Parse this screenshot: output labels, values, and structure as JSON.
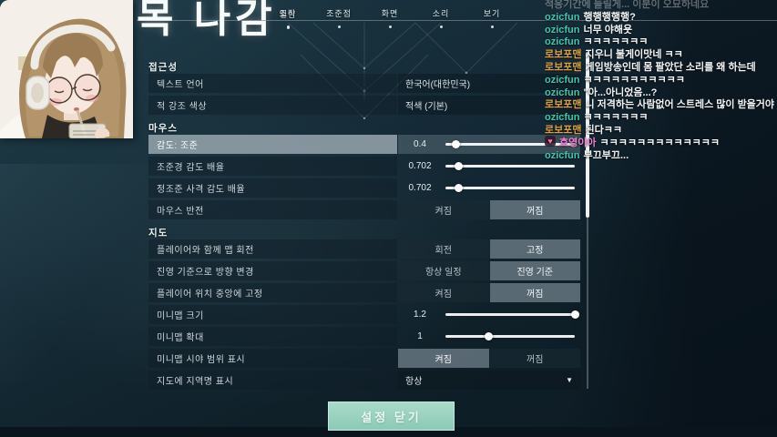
{
  "overlay": {
    "title": "목 나감"
  },
  "webcam": {
    "alt": "streamer-anime-avatar"
  },
  "tabs": {
    "hidden_selected": "일반",
    "items": [
      "조작",
      "조준점",
      "화면",
      "소리",
      "보기"
    ]
  },
  "settings": {
    "sections": [
      {
        "title": "접근성",
        "rows": [
          {
            "label": "텍스트 언어",
            "type": "select",
            "value": "한국어(대한민국)"
          },
          {
            "label": "적 강조 색상",
            "type": "select",
            "value": "적색 (기본)"
          }
        ]
      },
      {
        "title": "마우스",
        "rows": [
          {
            "label": "감도: 조준",
            "type": "slider",
            "value": "0.4",
            "percent": 8,
            "highlight": true
          },
          {
            "label": "조준경 감도 배율",
            "type": "slider",
            "value": "0.702",
            "percent": 10
          },
          {
            "label": "정조준 사격 감도 배율",
            "type": "slider",
            "value": "0.702",
            "percent": 10
          },
          {
            "label": "마우스 반전",
            "type": "toggle",
            "options": [
              "켜짐",
              "꺼짐"
            ],
            "selected": 1
          }
        ]
      },
      {
        "title": "지도",
        "rows": [
          {
            "label": "플레이어와 함께 맵 회전",
            "type": "toggle",
            "options": [
              "회전",
              "고정"
            ],
            "selected": 1
          },
          {
            "label": "진영 기준으로 방향 변경",
            "type": "toggle",
            "options": [
              "항상 일정",
              "진영 기준"
            ],
            "selected": 1
          },
          {
            "label": "플레이어 위치 중앙에 고정",
            "type": "toggle",
            "options": [
              "켜짐",
              "꺼짐"
            ],
            "selected": 1
          },
          {
            "label": "미니맵 크기",
            "type": "slider",
            "value": "1.2",
            "percent": 100
          },
          {
            "label": "미니맵 확대",
            "type": "slider",
            "value": "1",
            "percent": 33
          },
          {
            "label": "미니맵 시야 범위 표시",
            "type": "toggle",
            "options": [
              "켜짐",
              "꺼짐"
            ],
            "selected": 0
          },
          {
            "label": "지도에 지역명 표시",
            "type": "dropdown",
            "value": "항상"
          }
        ]
      }
    ],
    "close_button": "설정 닫기"
  },
  "chat": {
    "messages": [
      {
        "user": "",
        "text": "적응기간에 들릴게... 이분이 오묘하네요",
        "color": "gray",
        "faded": true
      },
      {
        "user": "ozicfun",
        "text": "행행행행행?",
        "color": "teal"
      },
      {
        "user": "ozicfun",
        "text": "너무 야해욧",
        "color": "teal"
      },
      {
        "user": "ozicfun",
        "text": "ㅋㅋㅋㅋㅋㅋㅋ",
        "color": "teal"
      },
      {
        "user": "로보포맨",
        "text": "지우니 불게이맛네 ㅋㅋ",
        "color": "gold"
      },
      {
        "user": "로보포맨",
        "text": "게임방송인데 몸 팔았단 소리를 왜 하는데",
        "color": "gold"
      },
      {
        "user": "ozicfun",
        "text": "ㅋㅋㅋㅋㅋㅋㅋㅋㅋㅋㅋ",
        "color": "teal"
      },
      {
        "user": "ozicfun",
        "text": "\"아...아니었음...?",
        "color": "teal"
      },
      {
        "user": "로보포맨",
        "text": "니 저격하는 사람없어 스트레스 많이 받을거야",
        "color": "gold"
      },
      {
        "user": "ozicfun",
        "text": "ㅋㅋㅋㅋㅋㅋㅋ",
        "color": "teal"
      },
      {
        "user": "로보포맨",
        "text": "된다ㅋㅋ",
        "color": "gold"
      },
      {
        "user": "호영이아",
        "text": "ㅋㅋㅋㅋㅋㅋㅋㅋㅋㅋㅋㅋㅋ",
        "color": "pink",
        "badge": "heart"
      },
      {
        "user": "ozicfun",
        "text": "부끄부끄...",
        "color": "teal"
      }
    ]
  },
  "colors": {
    "accent_button": "#8ccab6",
    "username_teal": "#3cc9ad",
    "username_gold": "#dca13e",
    "username_pink": "#f07ed6",
    "slider": "#ffffff"
  }
}
